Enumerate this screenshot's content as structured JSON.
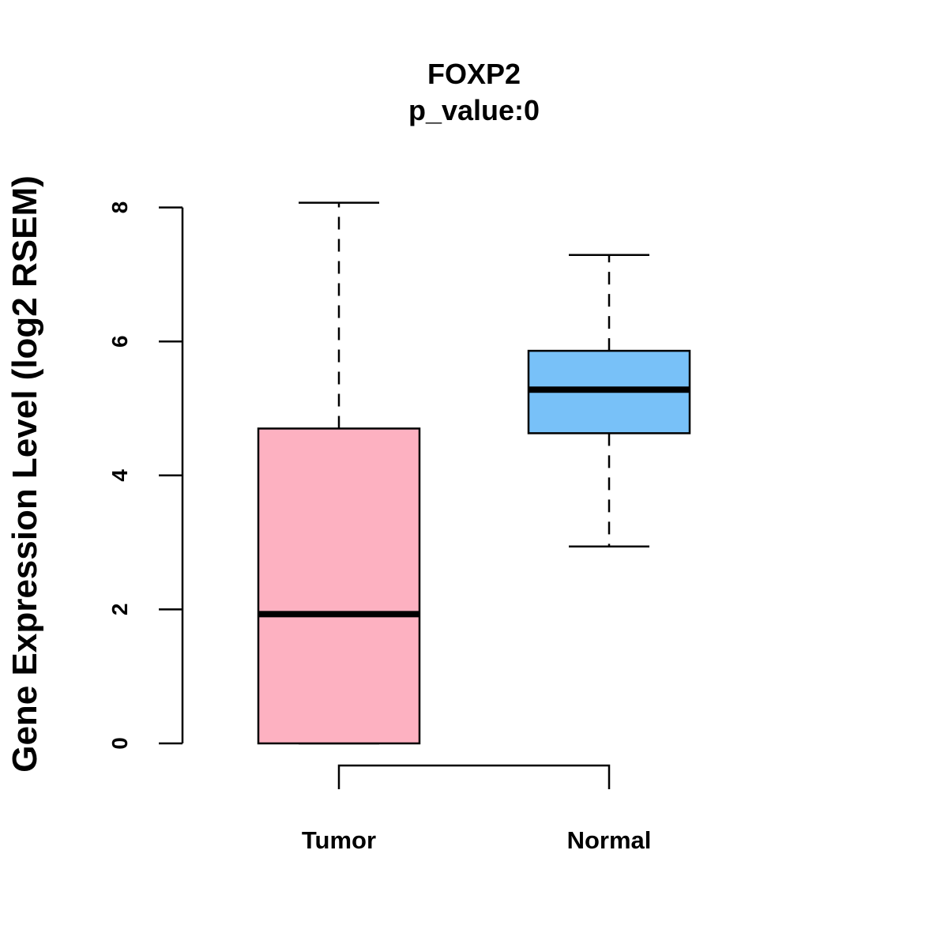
{
  "chart_data": {
    "type": "boxplot",
    "title": "FOXP2",
    "subtitle": "p_value:0",
    "ylabel": "Gene Expression Level (log2 RSEM)",
    "xlabel": "",
    "ylim": [
      0,
      8.2
    ],
    "yticks": [
      0,
      2,
      4,
      6,
      8
    ],
    "grid": false,
    "categories": [
      "Tumor",
      "Normal"
    ],
    "boxes": [
      {
        "category": "Tumor",
        "whisker_low": 0,
        "q1": 0,
        "median": 1.93,
        "q3": 4.7,
        "whisker_high": 8.07,
        "color": "#FDB1C1"
      },
      {
        "category": "Normal",
        "whisker_low": 2.94,
        "q1": 4.63,
        "median": 5.28,
        "q3": 5.86,
        "whisker_high": 7.29,
        "color": "#78C1F8"
      }
    ],
    "comparison_bracket": [
      "Tumor",
      "Normal"
    ]
  }
}
